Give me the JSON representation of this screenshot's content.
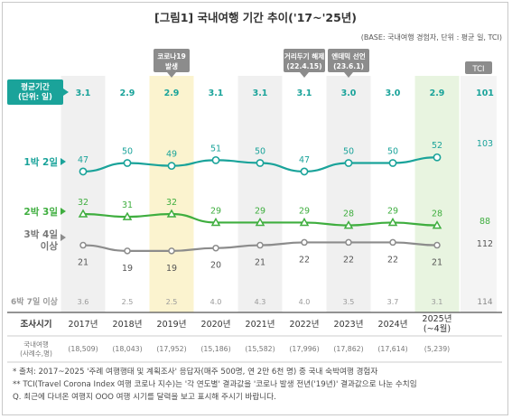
{
  "chart_data": {
    "type": "line",
    "title": "[그림1] 국내여행 기간 추이('17~'25년)",
    "subtitle": "(BASE: 국내여행 경험자, 단위 : 평균 일, TCI)",
    "categories": [
      "2017년",
      "2018년",
      "2019년",
      "2020년",
      "2021년",
      "2022년",
      "2023년",
      "2024년",
      "2025년\n(~4월)"
    ],
    "category_header": "조사시기",
    "avg_label": "평균기간\n(단위: 일)",
    "avg_values": [
      "3.1",
      "2.9",
      "2.9",
      "3.1",
      "3.1",
      "3.1",
      "3.0",
      "3.0",
      "2.9"
    ],
    "tci_header": "TCI",
    "tci_avg": "101",
    "series": [
      {
        "name": "1박 2일",
        "values": [
          47,
          50,
          49,
          51,
          50,
          47,
          50,
          50,
          52
        ],
        "tci": "103",
        "color": "#1aa39a"
      },
      {
        "name": "2박 3일",
        "values": [
          32,
          31,
          32,
          29,
          29,
          29,
          28,
          29,
          28
        ],
        "tci": "88",
        "color": "#3fae3f"
      },
      {
        "name": "3박 4일 이상",
        "values": [
          21,
          19,
          19,
          20,
          21,
          22,
          22,
          22,
          21
        ],
        "tci": "112",
        "color": "#8c8c8c"
      }
    ],
    "extra_row": {
      "name": "6박 7일 이상",
      "values": [
        "3.6",
        "2.5",
        "2.5",
        "4.0",
        "4.3",
        "4.0",
        "3.5",
        "3.7",
        "3.1"
      ],
      "tci": "114"
    },
    "sample_row": {
      "name": "국내여행\n(사례수,명)",
      "values": [
        "(18,509)",
        "(18,043)",
        "(17,952)",
        "(15,186)",
        "(15,582)",
        "(17,996)",
        "(17,862)",
        "(17,614)",
        "(5,239)"
      ]
    },
    "annotations": [
      {
        "text": "코로나19\n발생",
        "index": 2
      },
      {
        "text": "거리두기 해제\n(22.4.15)",
        "index": 5
      },
      {
        "text": "엔데믹 선언\n(23.6.1)",
        "index": 6
      }
    ],
    "highlight_colors": {
      "covid": "#fbf3cf",
      "latest": "#e8f4e0",
      "shade": "#f0f0f0",
      "annotation": "#8c8c8c"
    }
  },
  "footer": {
    "line1": "* 출처: 2017~2025 '주례 여행행태 및 계획조사' 응답자(매주 500명, 연 2만 6천 명) 중 국내 숙박여행 경험자",
    "line2": "** TCI(Travel Corona Index 여행 코로나 지수)는 '각 연도별' 결과값을 '코로나 발생 전년('19년)' 결과값으로 나눈 수치임",
    "line3": "Q. 최근에 다녀온 여행지 OOO 여행 시기를 달력을 보고 표시해 주시기 바랍니다."
  }
}
